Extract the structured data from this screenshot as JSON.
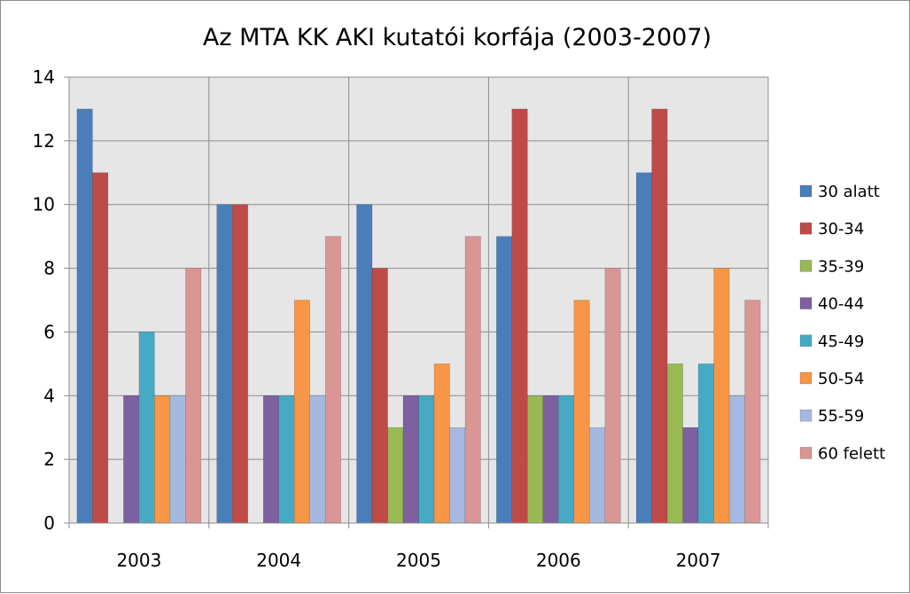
{
  "chart_data": {
    "type": "bar",
    "title": "Az MTA KK AKI kutatói korfája (2003-2007)",
    "xlabel": "",
    "ylabel": "",
    "categories": [
      "2003",
      "2004",
      "2005",
      "2006",
      "2007"
    ],
    "ylim": [
      0,
      14
    ],
    "yticks": [
      0,
      2,
      4,
      6,
      8,
      10,
      12,
      14
    ],
    "grid": true,
    "legend_position": "right",
    "series": [
      {
        "name": "30 alatt",
        "color": "#4a7ebb",
        "values": [
          13,
          10,
          10,
          9,
          11
        ]
      },
      {
        "name": "30-34",
        "color": "#be4b48",
        "values": [
          11,
          10,
          8,
          13,
          13
        ]
      },
      {
        "name": "35-39",
        "color": "#98b954",
        "values": [
          0,
          0,
          3,
          4,
          5
        ]
      },
      {
        "name": "40-44",
        "color": "#7d60a0",
        "values": [
          4,
          4,
          4,
          4,
          3
        ]
      },
      {
        "name": "45-49",
        "color": "#46aac5",
        "values": [
          6,
          4,
          4,
          4,
          5
        ]
      },
      {
        "name": "50-54",
        "color": "#f79646",
        "values": [
          4,
          7,
          5,
          7,
          8
        ]
      },
      {
        "name": "55-59",
        "color": "#a5b9e0",
        "values": [
          4,
          4,
          3,
          3,
          4
        ]
      },
      {
        "name": "60 felett",
        "color": "#d99694",
        "values": [
          8,
          9,
          9,
          8,
          7
        ]
      }
    ]
  }
}
